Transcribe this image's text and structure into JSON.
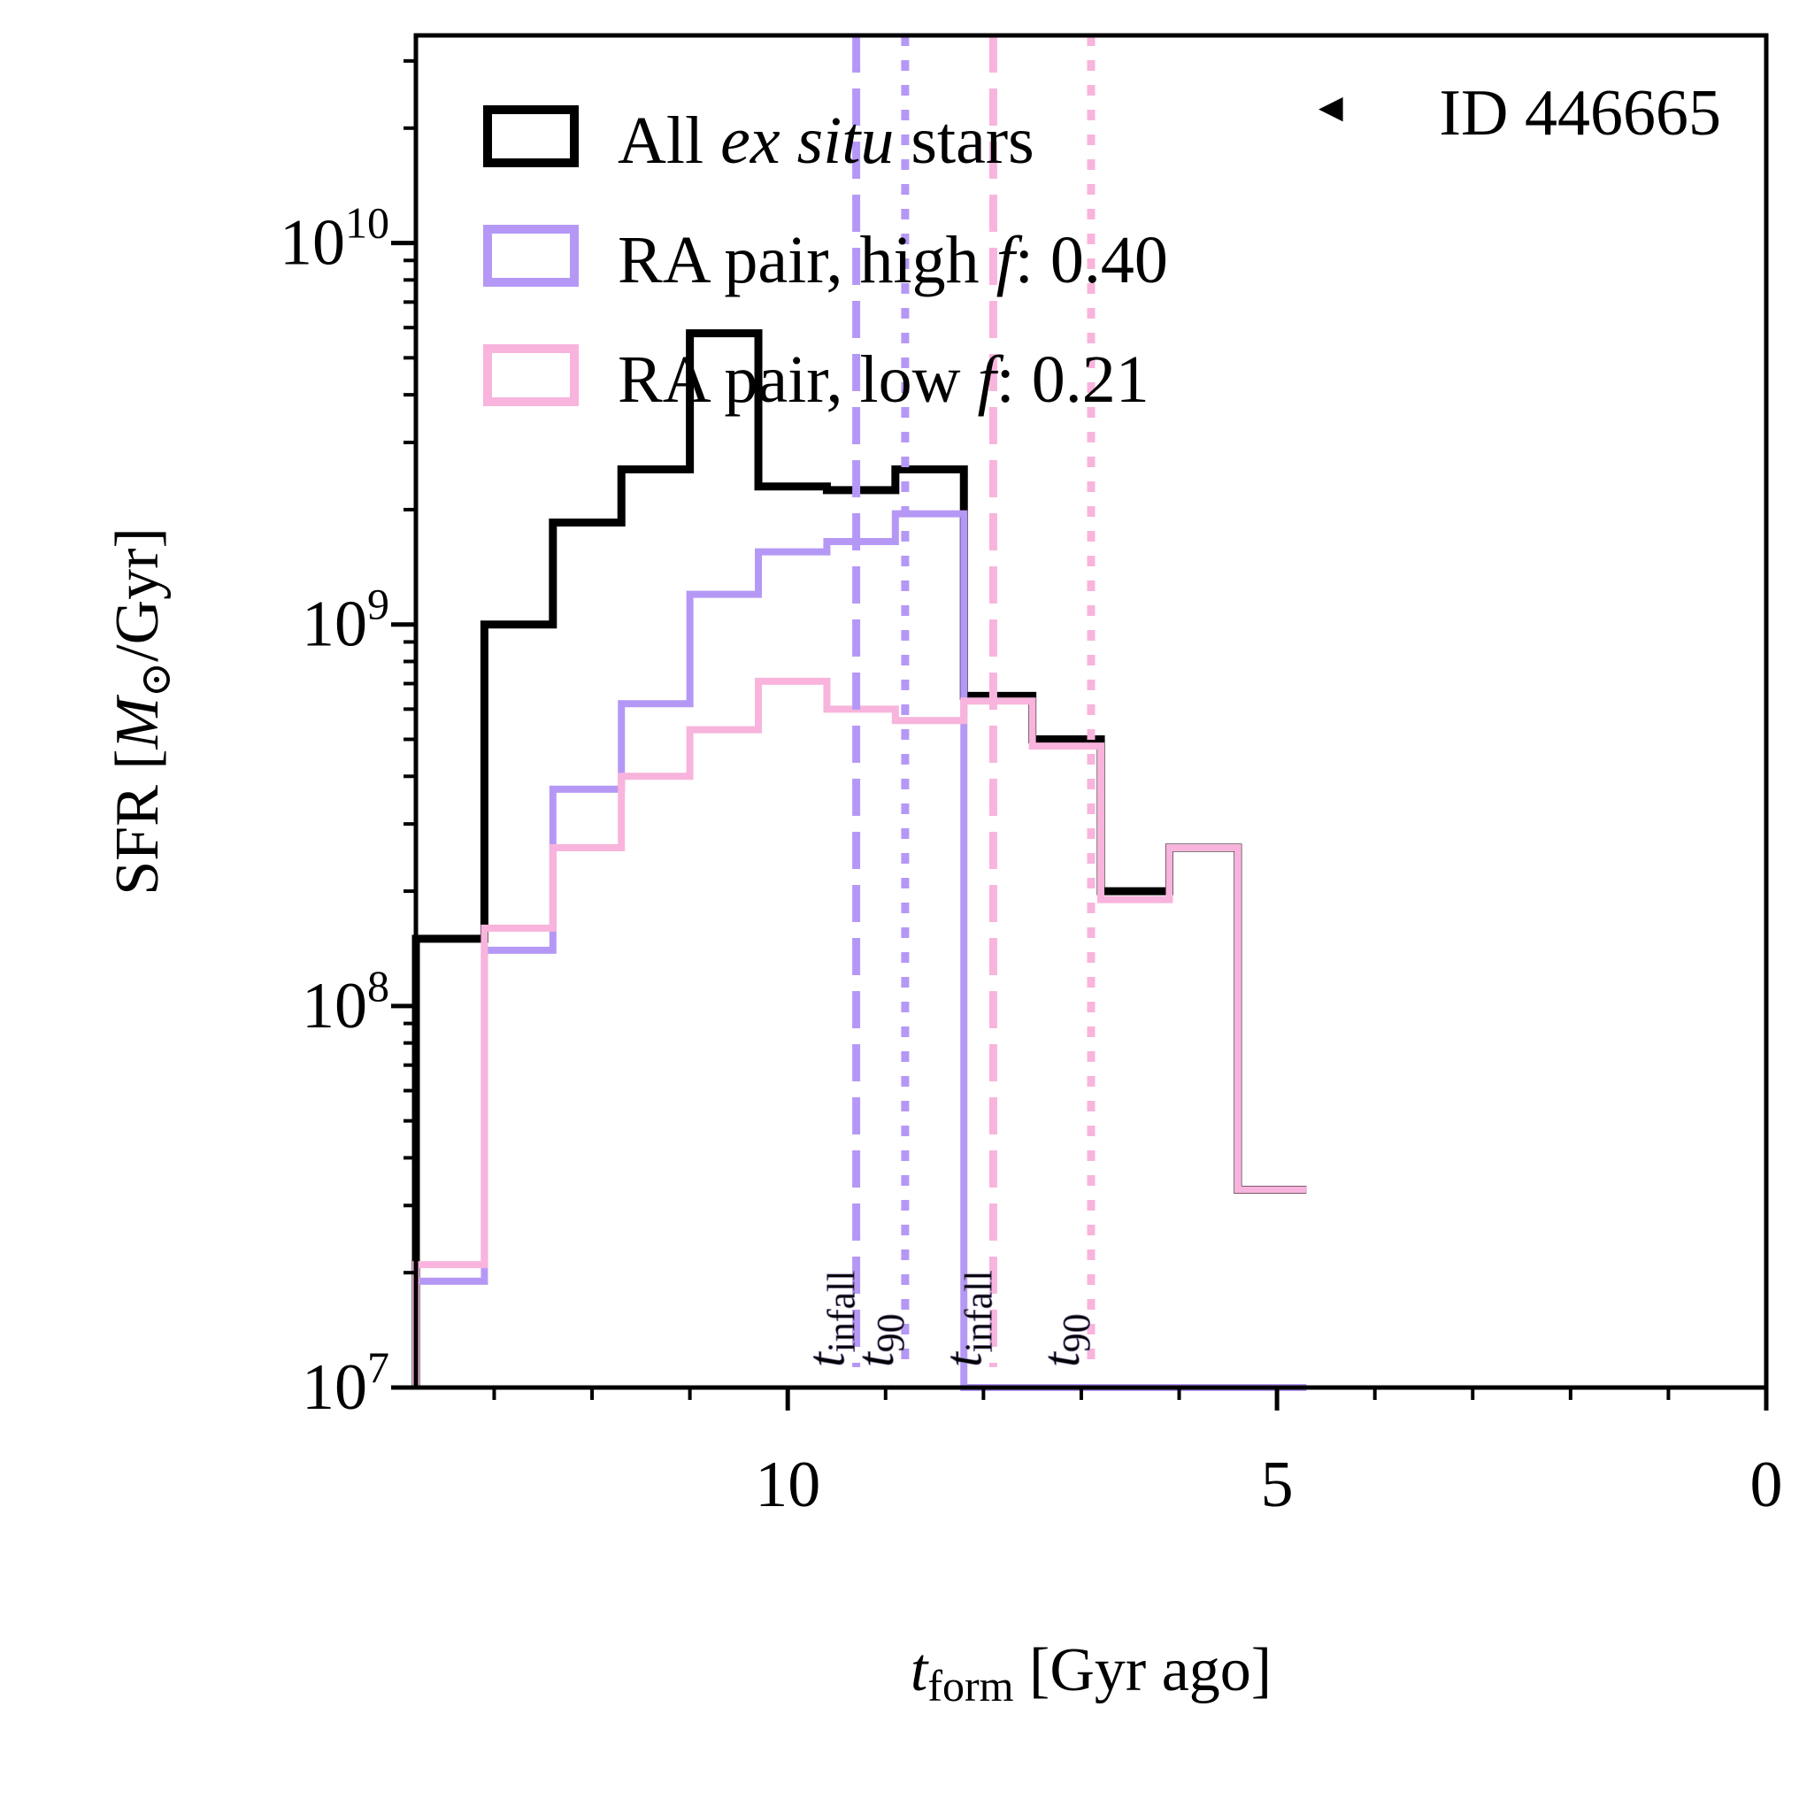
{
  "chart_data": {
    "type": "step-histogram",
    "title": "",
    "xlabel": {
      "main": "t",
      "sub": "form",
      "rest": " [Gyr ago]"
    },
    "ylabel": {
      "prefix": "SFR [",
      "symbol": "M",
      "sub": "⊙",
      "suffix": "/Gyr]"
    },
    "xlim": [
      13.8,
      0
    ],
    "ylim": [
      10000000,
      35000000000.0
    ],
    "yscale": "log",
    "x_ticks": [
      {
        "value": 10,
        "label": "10"
      },
      {
        "value": 5,
        "label": "5"
      },
      {
        "value": 0,
        "label": "0"
      }
    ],
    "x_minor_ticks": [
      13,
      12,
      11,
      10,
      9,
      8,
      7,
      6,
      5,
      4,
      3,
      2,
      1,
      0
    ],
    "y_ticks": [
      {
        "value": 10000000,
        "base": "10",
        "exp": "7"
      },
      {
        "value": 100000000,
        "base": "10",
        "exp": "8"
      },
      {
        "value": 1000000000,
        "base": "10",
        "exp": "9"
      },
      {
        "value": 10000000000,
        "base": "10",
        "exp": "10"
      }
    ],
    "bin_edges": [
      13.8,
      13.1,
      12.4,
      11.7,
      11.0,
      10.3,
      9.6,
      8.9,
      8.2,
      7.5,
      6.8,
      6.1,
      5.4,
      4.7
    ],
    "series": [
      {
        "name": "All ex situ stars",
        "color": "#000000",
        "values": [
          150000000,
          1000000000,
          1850000000,
          2550000000,
          5800000000,
          2300000000,
          2250000000,
          2550000000,
          650000000,
          500000000,
          200000000,
          260000000,
          33000000
        ]
      },
      {
        "name": "RA pair, high f",
        "color": "#b598f5",
        "values": [
          19000000,
          140000000,
          370000000,
          620000000,
          1200000000,
          1550000000,
          1650000000,
          1950000000,
          10000000,
          10000000,
          10000000,
          10000000,
          10000000
        ]
      },
      {
        "name": "RA pair, low f",
        "color": "#f8b4dc",
        "values": [
          21000000,
          160000000,
          260000000,
          400000000,
          530000000,
          710000000,
          600000000,
          560000000,
          630000000,
          480000000,
          190000000,
          260000000,
          33000000
        ]
      }
    ],
    "legend": {
      "location": "upper-left",
      "entries": [
        {
          "series": "All ex situ stars",
          "color": "#000000",
          "text_before": "All ",
          "text_italic": "ex situ",
          "text_after": " stars",
          "value": ""
        },
        {
          "series": "RA pair, high f",
          "color": "#b598f5",
          "text_before": "RA pair, high ",
          "text_italic": "f",
          "text_after": ": ",
          "value": "0.40"
        },
        {
          "series": "RA pair, low f",
          "color": "#f8b4dc",
          "text_before": "RA pair, low ",
          "text_italic": "f",
          "text_after": ": ",
          "value": "0.21"
        }
      ]
    },
    "annotation": {
      "marker": "◀",
      "text": "ID 446665",
      "location": "top-right"
    },
    "vertical_lines": [
      {
        "x": 9.3,
        "style": "dashed",
        "color": "#b598f5",
        "label_main": "t",
        "label_sub": "infall"
      },
      {
        "x": 8.8,
        "style": "dotted",
        "color": "#b598f5",
        "label_main": "t",
        "label_sub": "90"
      },
      {
        "x": 7.9,
        "style": "dashed",
        "color": "#f8b4dc",
        "label_main": "t",
        "label_sub": "infall"
      },
      {
        "x": 6.9,
        "style": "dotted",
        "color": "#f8b4dc",
        "label_main": "t",
        "label_sub": "90"
      }
    ]
  }
}
